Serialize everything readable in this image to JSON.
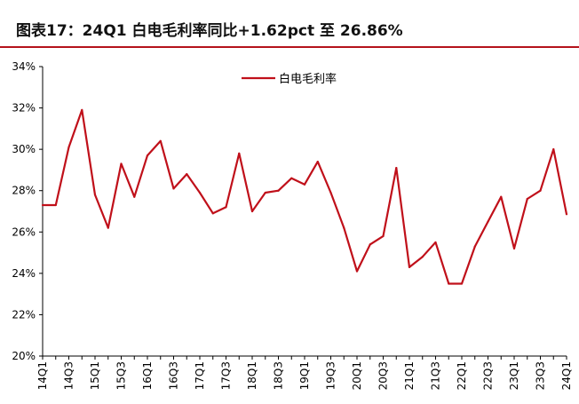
{
  "title": "图表17：24Q1 白电毛利率同比+1.62pct 至 26.86%",
  "colors": {
    "accent": "#b5121b",
    "series": "#c0101a",
    "axis": "#000000"
  },
  "chart_data": {
    "type": "line",
    "title": "",
    "xlabel": "",
    "ylabel": "",
    "ylim": [
      20,
      34
    ],
    "y_ticks": [
      "34%",
      "32%",
      "30%",
      "28%",
      "26%",
      "24%",
      "22%",
      "20%"
    ],
    "grid": false,
    "legend_position": "top-center",
    "x": [
      "14Q1",
      "14Q2",
      "14Q3",
      "14Q4",
      "15Q1",
      "15Q2",
      "15Q3",
      "15Q4",
      "16Q1",
      "16Q2",
      "16Q3",
      "16Q4",
      "17Q1",
      "17Q2",
      "17Q3",
      "17Q4",
      "18Q1",
      "18Q2",
      "18Q3",
      "18Q4",
      "19Q1",
      "19Q2",
      "19Q3",
      "19Q4",
      "20Q1",
      "20Q2",
      "20Q3",
      "20Q4",
      "21Q1",
      "21Q2",
      "21Q3",
      "21Q4",
      "22Q1",
      "22Q2",
      "22Q3",
      "22Q4",
      "23Q1",
      "23Q2",
      "23Q3",
      "23Q4",
      "24Q1"
    ],
    "x_tick_labels": [
      "14Q1",
      "14Q3",
      "15Q1",
      "15Q3",
      "16Q1",
      "16Q3",
      "17Q1",
      "17Q3",
      "18Q1",
      "18Q3",
      "19Q1",
      "19Q3",
      "20Q1",
      "20Q3",
      "21Q1",
      "21Q3",
      "22Q1",
      "22Q3",
      "23Q1",
      "23Q3",
      "24Q1"
    ],
    "series": [
      {
        "name": "白电毛利率",
        "values": [
          27.3,
          27.3,
          30.1,
          31.9,
          27.8,
          26.2,
          29.3,
          27.7,
          29.7,
          30.4,
          28.1,
          28.8,
          27.9,
          26.9,
          27.2,
          29.8,
          27.0,
          27.9,
          28.0,
          28.6,
          28.3,
          29.4,
          27.9,
          26.2,
          24.1,
          25.4,
          25.8,
          29.1,
          24.3,
          24.8,
          25.5,
          23.5,
          23.5,
          25.3,
          26.5,
          27.7,
          25.2,
          27.6,
          28.0,
          30.0,
          26.86
        ]
      }
    ]
  }
}
